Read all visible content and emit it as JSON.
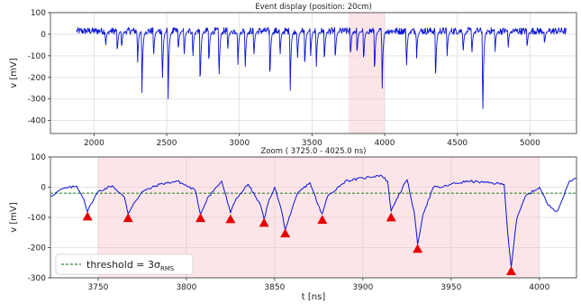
{
  "colors": {
    "signal": "#0a14d8",
    "window": "#f5b5bf",
    "window_alpha": 0.35,
    "threshold": "#2e8b2e",
    "peak_marker": "#e60000",
    "grid": "#dcdcdc"
  },
  "chart_data": [
    {
      "type": "line",
      "title": "Event display (position: 20cm)",
      "xlabel": "",
      "ylabel": "v [mV]",
      "xlim": [
        1700,
        5320
      ],
      "ylim": [
        -460,
        100
      ],
      "xticks": [
        2000,
        2500,
        3000,
        3500,
        4000,
        4500,
        5000
      ],
      "yticks": [
        100,
        0,
        -100,
        -200,
        -300,
        -400
      ],
      "grid": true,
      "highlight_x": [
        3750,
        4000
      ],
      "series": [
        {
          "x_start": 1880,
          "x_end": 5250,
          "baseline": 15,
          "noise": 16,
          "spikes": [
            {
              "x": 2080,
              "y": -60
            },
            {
              "x": 2160,
              "y": -90
            },
            {
              "x": 2190,
              "y": -70
            },
            {
              "x": 2300,
              "y": -130
            },
            {
              "x": 2330,
              "y": -270
            },
            {
              "x": 2410,
              "y": -110
            },
            {
              "x": 2470,
              "y": -240
            },
            {
              "x": 2510,
              "y": -300
            },
            {
              "x": 2580,
              "y": -80
            },
            {
              "x": 2620,
              "y": -110
            },
            {
              "x": 2680,
              "y": -120
            },
            {
              "x": 2730,
              "y": -260
            },
            {
              "x": 2790,
              "y": -150
            },
            {
              "x": 2860,
              "y": -220
            },
            {
              "x": 2920,
              "y": -80
            },
            {
              "x": 2990,
              "y": -140
            },
            {
              "x": 3040,
              "y": -180
            },
            {
              "x": 3100,
              "y": -110
            },
            {
              "x": 3210,
              "y": -230
            },
            {
              "x": 3280,
              "y": -110
            },
            {
              "x": 3350,
              "y": -260
            },
            {
              "x": 3400,
              "y": -130
            },
            {
              "x": 3450,
              "y": -170
            },
            {
              "x": 3490,
              "y": -120
            },
            {
              "x": 3530,
              "y": -150
            },
            {
              "x": 3585,
              "y": -140
            },
            {
              "x": 3660,
              "y": -130
            },
            {
              "x": 3765,
              "y": -110
            },
            {
              "x": 3810,
              "y": -100
            },
            {
              "x": 3855,
              "y": -140
            },
            {
              "x": 3930,
              "y": -200
            },
            {
              "x": 3983,
              "y": -250
            },
            {
              "x": 4150,
              "y": -170
            },
            {
              "x": 4220,
              "y": -110
            },
            {
              "x": 4350,
              "y": -240
            },
            {
              "x": 4430,
              "y": -100
            },
            {
              "x": 4540,
              "y": -90
            },
            {
              "x": 4600,
              "y": -100
            },
            {
              "x": 4675,
              "y": -410
            },
            {
              "x": 4760,
              "y": -80
            },
            {
              "x": 4850,
              "y": -60
            },
            {
              "x": 4980,
              "y": -70
            },
            {
              "x": 5100,
              "y": -50
            }
          ]
        }
      ]
    },
    {
      "type": "line",
      "title": "Zoom ( 3725.0 - 4025.0 ns)",
      "xlabel": "t [ns]",
      "ylabel": "v [mV]",
      "xlim": [
        3723,
        4021
      ],
      "ylim": [
        -300,
        100
      ],
      "xticks": [
        3750,
        3800,
        3850,
        3900,
        3950,
        4000
      ],
      "yticks": [
        100,
        0,
        -100,
        -200,
        -300
      ],
      "grid": true,
      "highlight_x": [
        3750,
        4000
      ],
      "threshold_y": -20,
      "legend": {
        "position": "lower-left",
        "label": "threshold = 3σ",
        "subscript": "RMS"
      },
      "series": [
        {
          "signal": [
            [
              3723,
              -30
            ],
            [
              3730,
              -5
            ],
            [
              3738,
              3
            ],
            [
              3742,
              -40
            ],
            [
              3744,
              -82
            ],
            [
              3746,
              -55
            ],
            [
              3750,
              -15
            ],
            [
              3758,
              5
            ],
            [
              3765,
              -35
            ],
            [
              3767,
              -88
            ],
            [
              3770,
              -55
            ],
            [
              3775,
              -15
            ],
            [
              3785,
              10
            ],
            [
              3795,
              20
            ],
            [
              3805,
              -10
            ],
            [
              3808,
              -90
            ],
            [
              3812,
              -35
            ],
            [
              3820,
              20
            ],
            [
              3825,
              -85
            ],
            [
              3828,
              -40
            ],
            [
              3835,
              10
            ],
            [
              3842,
              -60
            ],
            [
              3844,
              -105
            ],
            [
              3847,
              -40
            ],
            [
              3850,
              0
            ],
            [
              3854,
              -80
            ],
            [
              3856,
              -140
            ],
            [
              3859,
              -90
            ],
            [
              3863,
              -20
            ],
            [
              3870,
              15
            ],
            [
              3876,
              -80
            ],
            [
              3877,
              -88
            ],
            [
              3880,
              -30
            ],
            [
              3890,
              20
            ],
            [
              3900,
              30
            ],
            [
              3910,
              40
            ],
            [
              3914,
              20
            ],
            [
              3916,
              -80
            ],
            [
              3919,
              -40
            ],
            [
              3925,
              25
            ],
            [
              3929,
              -80
            ],
            [
              3931,
              -190
            ],
            [
              3934,
              -90
            ],
            [
              3940,
              0
            ],
            [
              3945,
              0
            ],
            [
              3950,
              10
            ],
            [
              3960,
              20
            ],
            [
              3970,
              15
            ],
            [
              3980,
              10
            ],
            [
              3982,
              -150
            ],
            [
              3984,
              -265
            ],
            [
              3987,
              -110
            ],
            [
              3992,
              -30
            ],
            [
              4000,
              0
            ],
            [
              4005,
              -60
            ],
            [
              4010,
              -80
            ],
            [
              4013,
              -40
            ],
            [
              4017,
              20
            ],
            [
              4021,
              30
            ]
          ]
        }
      ],
      "peaks": [
        {
          "x": 3744,
          "y": -97
        },
        {
          "x": 3767,
          "y": -102
        },
        {
          "x": 3808,
          "y": -102
        },
        {
          "x": 3825,
          "y": -106
        },
        {
          "x": 3844,
          "y": -118
        },
        {
          "x": 3856,
          "y": -153
        },
        {
          "x": 3877,
          "y": -108
        },
        {
          "x": 3916,
          "y": -100
        },
        {
          "x": 3931,
          "y": -204
        },
        {
          "x": 3984,
          "y": -278
        }
      ]
    }
  ]
}
